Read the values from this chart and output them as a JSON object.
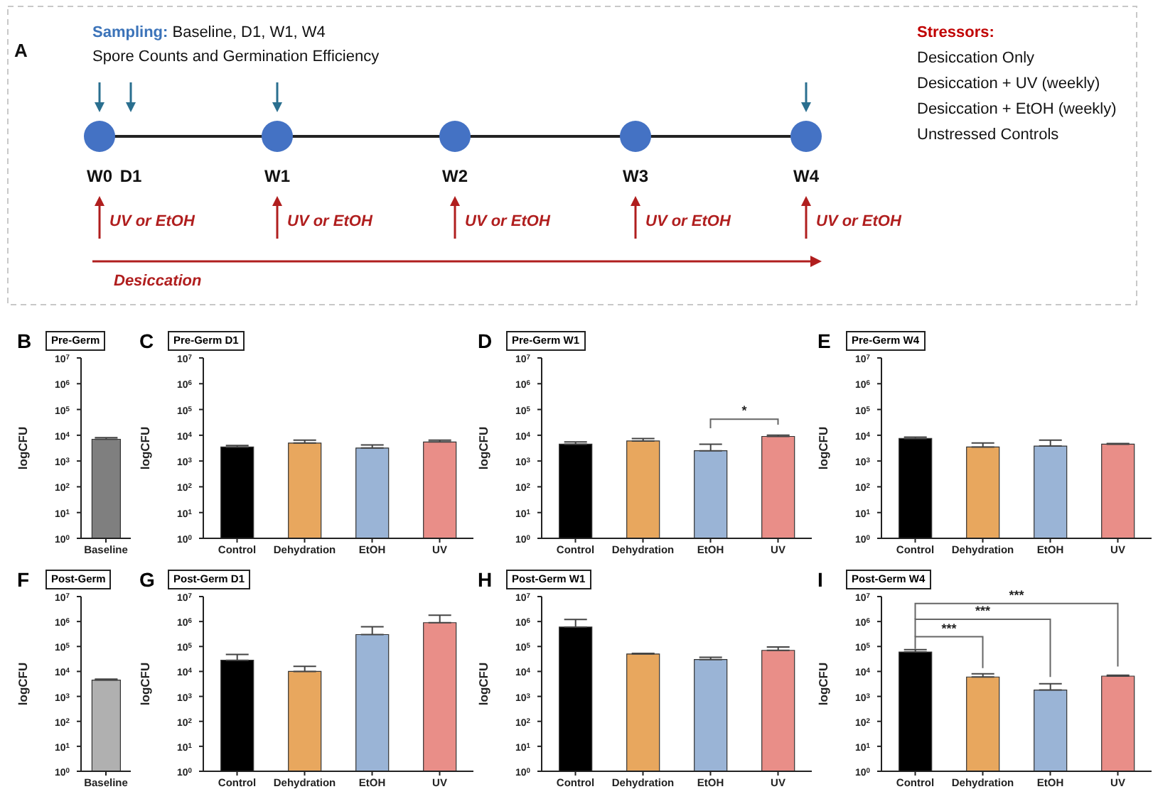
{
  "chart_data": [
    {
      "type": "other",
      "annotations": [
        "A",
        "Sampling:",
        "Baseline, D1, W1, W4",
        "Spore Counts and Germination Efficiency",
        "W0",
        "D1",
        "W1",
        "W2",
        "W3",
        "W4",
        "UV or EtOH",
        "UV or EtOH",
        "UV or EtOH",
        "UV or EtOH",
        "UV or EtOH",
        "Desiccation",
        "Stressors:",
        "Desiccation Only",
        "Desiccation + UV (weekly)",
        "Desiccation + EtOH (weekly)",
        "Unstressed Controls"
      ]
    },
    {
      "type": "bar",
      "title": "Pre-Germ",
      "annotations": [
        "B"
      ],
      "ylabel": "logCFU",
      "categories": [
        "Baseline"
      ],
      "values": [
        7000
      ],
      "errors": [
        [
          7000,
          8000
        ]
      ],
      "colors": [
        "#7f7f7f"
      ],
      "log": true,
      "ylim": [
        1,
        10000000
      ],
      "yticks": [
        {
          "value": 1,
          "label": "10$^{0}$"
        },
        {
          "value": 10,
          "label": "10$^{1}$"
        },
        {
          "value": 100,
          "label": "10$^{2}$"
        },
        {
          "value": 1000,
          "label": "10$^{3}$"
        },
        {
          "value": 10000,
          "label": "10$^{4}$"
        },
        {
          "value": 100000,
          "label": "10$^{5}$"
        },
        {
          "value": 1000000,
          "label": "10$^{6}$"
        },
        {
          "value": 10000000,
          "label": "10$^{7}$"
        }
      ],
      "grid": false,
      "legend": false
    },
    {
      "type": "bar",
      "title": "Pre-Germ D1",
      "annotations": [
        "C"
      ],
      "ylabel": "logCFU",
      "categories": [
        "Control",
        "Dehydration",
        "EtOH",
        "UV"
      ],
      "values": [
        3500,
        5000,
        3200,
        5500
      ],
      "errors": [
        [
          3500,
          4000
        ],
        [
          5000,
          6500
        ],
        [
          3200,
          4200
        ],
        [
          5500,
          6500
        ]
      ],
      "colors": [
        "#000000",
        "#e8a75e",
        "#9ab4d6",
        "#e98e88"
      ],
      "log": true,
      "ylim": [
        1,
        10000000
      ],
      "yticks": [
        {
          "value": 1,
          "label": "10$^{0}$"
        },
        {
          "value": 10,
          "label": "10$^{1}$"
        },
        {
          "value": 100,
          "label": "10$^{2}$"
        },
        {
          "value": 1000,
          "label": "10$^{3}$"
        },
        {
          "value": 10000,
          "label": "10$^{4}$"
        },
        {
          "value": 100000,
          "label": "10$^{5}$"
        },
        {
          "value": 1000000,
          "label": "10$^{6}$"
        },
        {
          "value": 10000000,
          "label": "10$^{7}$"
        }
      ],
      "grid": false,
      "legend": false
    },
    {
      "type": "bar",
      "title": "Pre-Germ W1",
      "annotations": [
        "D",
        "*"
      ],
      "ylabel": "logCFU",
      "categories": [
        "Control",
        "Dehydration",
        "EtOH",
        "UV"
      ],
      "values": [
        4500,
        6000,
        2500,
        9000
      ],
      "errors": [
        [
          4500,
          5500
        ],
        [
          6000,
          7500
        ],
        [
          2500,
          4500
        ],
        [
          9000,
          10000
        ]
      ],
      "colors": [
        "#000000",
        "#e8a75e",
        "#9ab4d6",
        "#e98e88"
      ],
      "log": true,
      "ylim": [
        1,
        10000000
      ],
      "yticks": [
        {
          "value": 1,
          "label": "10$^{0}$"
        },
        {
          "value": 10,
          "label": "10$^{1}$"
        },
        {
          "value": 100,
          "label": "10$^{2}$"
        },
        {
          "value": 1000,
          "label": "10$^{3}$"
        },
        {
          "value": 10000,
          "label": "10$^{4}$"
        },
        {
          "value": 100000,
          "label": "10$^{5}$"
        },
        {
          "value": 1000000,
          "label": "10$^{6}$"
        },
        {
          "value": 10000000,
          "label": "10$^{7}$"
        }
      ],
      "grid": false,
      "legend": false
    },
    {
      "type": "bar",
      "title": "Pre-Germ W4",
      "annotations": [
        "E"
      ],
      "ylabel": "logCFU",
      "categories": [
        "Control",
        "Dehydration",
        "EtOH",
        "UV"
      ],
      "values": [
        7500,
        3500,
        3800,
        4500
      ],
      "errors": [
        [
          7500,
          8500
        ],
        [
          3500,
          5000
        ],
        [
          3800,
          6500
        ],
        [
          4500,
          4800
        ]
      ],
      "colors": [
        "#000000",
        "#e8a75e",
        "#9ab4d6",
        "#e98e88"
      ],
      "log": true,
      "ylim": [
        1,
        10000000
      ],
      "yticks": [
        {
          "value": 1,
          "label": "10$^{0}$"
        },
        {
          "value": 10,
          "label": "10$^{1}$"
        },
        {
          "value": 100,
          "label": "10$^{2}$"
        },
        {
          "value": 1000,
          "label": "10$^{3}$"
        },
        {
          "value": 10000,
          "label": "10$^{4}$"
        },
        {
          "value": 100000,
          "label": "10$^{5}$"
        },
        {
          "value": 1000000,
          "label": "10$^{6}$"
        },
        {
          "value": 10000000,
          "label": "10$^{7}$"
        }
      ],
      "grid": false,
      "legend": false
    },
    {
      "type": "bar",
      "title": "Post-Germ",
      "annotations": [
        "F"
      ],
      "ylabel": "logCFU",
      "categories": [
        "Baseline"
      ],
      "values": [
        4500
      ],
      "errors": [
        [
          4500,
          4900
        ]
      ],
      "colors": [
        "#b0b0b0"
      ],
      "log": true,
      "ylim": [
        1,
        10000000
      ],
      "yticks": [
        {
          "value": 1,
          "label": "10$^{0}$"
        },
        {
          "value": 10,
          "label": "10$^{1}$"
        },
        {
          "value": 100,
          "label": "10$^{2}$"
        },
        {
          "value": 1000,
          "label": "10$^{3}$"
        },
        {
          "value": 10000,
          "label": "10$^{4}$"
        },
        {
          "value": 100000,
          "label": "10$^{5}$"
        },
        {
          "value": 1000000,
          "label": "10$^{6}$"
        },
        {
          "value": 10000000,
          "label": "10$^{7}$"
        }
      ],
      "grid": false,
      "legend": false
    },
    {
      "type": "bar",
      "title": "Post-Germ D1",
      "annotations": [
        "G"
      ],
      "ylabel": "logCFU",
      "categories": [
        "Control",
        "Dehydration",
        "EtOH",
        "UV"
      ],
      "values": [
        28000,
        10000,
        300000,
        900000
      ],
      "errors": [
        [
          28000,
          48000
        ],
        [
          10000,
          16000
        ],
        [
          300000,
          620000
        ],
        [
          900000,
          1800000
        ]
      ],
      "colors": [
        "#000000",
        "#e8a75e",
        "#9ab4d6",
        "#e98e88"
      ],
      "log": true,
      "ylim": [
        1,
        10000000
      ],
      "yticks": [
        {
          "value": 1,
          "label": "10$^{0}$"
        },
        {
          "value": 10,
          "label": "10$^{1}$"
        },
        {
          "value": 100,
          "label": "10$^{2}$"
        },
        {
          "value": 1000,
          "label": "10$^{3}$"
        },
        {
          "value": 10000,
          "label": "10$^{4}$"
        },
        {
          "value": 100000,
          "label": "10$^{5}$"
        },
        {
          "value": 1000000,
          "label": "10$^{6}$"
        },
        {
          "value": 10000000,
          "label": "10$^{7}$"
        }
      ],
      "grid": false,
      "legend": false
    },
    {
      "type": "bar",
      "title": "Post-Germ W1",
      "annotations": [
        "H"
      ],
      "ylabel": "logCFU",
      "categories": [
        "Control",
        "Dehydration",
        "EtOH",
        "UV"
      ],
      "values": [
        600000,
        50000,
        30000,
        70000
      ],
      "errors": [
        [
          600000,
          1200000
        ],
        [
          50000,
          53000
        ],
        [
          30000,
          37000
        ],
        [
          70000,
          95000
        ]
      ],
      "colors": [
        "#000000",
        "#e8a75e",
        "#9ab4d6",
        "#e98e88"
      ],
      "log": true,
      "ylim": [
        1,
        10000000
      ],
      "yticks": [
        {
          "value": 1,
          "label": "10$^{0}$"
        },
        {
          "value": 10,
          "label": "10$^{1}$"
        },
        {
          "value": 100,
          "label": "10$^{2}$"
        },
        {
          "value": 1000,
          "label": "10$^{3}$"
        },
        {
          "value": 10000,
          "label": "10$^{4}$"
        },
        {
          "value": 100000,
          "label": "10$^{5}$"
        },
        {
          "value": 1000000,
          "label": "10$^{6}$"
        },
        {
          "value": 10000000,
          "label": "10$^{7}$"
        }
      ],
      "grid": false,
      "legend": false
    },
    {
      "type": "bar",
      "title": "Post-Germ W4",
      "annotations": [
        "I",
        "***",
        "***",
        "***"
      ],
      "ylabel": "logCFU",
      "categories": [
        "Control",
        "Dehydration",
        "EtOH",
        "UV"
      ],
      "values": [
        60000,
        6000,
        1800,
        6500
      ],
      "errors": [
        [
          60000,
          75000
        ],
        [
          6000,
          8000
        ],
        [
          1800,
          3200
        ],
        [
          6500,
          7000
        ]
      ],
      "colors": [
        "#000000",
        "#e8a75e",
        "#9ab4d6",
        "#e98e88"
      ],
      "log": true,
      "ylim": [
        1,
        10000000
      ],
      "yticks": [
        {
          "value": 1,
          "label": "10$^{0}$"
        },
        {
          "value": 10,
          "label": "10$^{1}$"
        },
        {
          "value": 100,
          "label": "10$^{2}$"
        },
        {
          "value": 1000,
          "label": "10$^{3}$"
        },
        {
          "value": 10000,
          "label": "10$^{4}$"
        },
        {
          "value": 100000,
          "label": "10$^{5}$"
        },
        {
          "value": 1000000,
          "label": "10$^{6}$"
        },
        {
          "value": 10000000,
          "label": "10$^{7}$"
        }
      ],
      "grid": false,
      "legend": false
    }
  ]
}
